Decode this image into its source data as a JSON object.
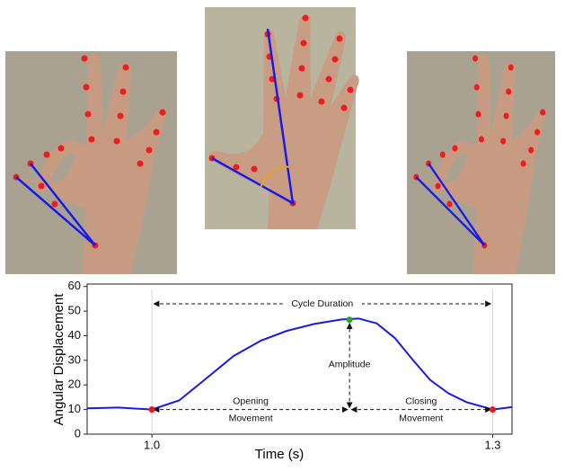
{
  "chart_data": {
    "type": "line",
    "x_label": "Time (s)",
    "y_label": "Angular Displacement",
    "x": [
      0.943,
      0.97,
      1.0,
      1.024,
      1.048,
      1.072,
      1.096,
      1.119,
      1.143,
      1.167,
      1.182,
      1.198,
      1.214,
      1.23,
      1.245,
      1.261,
      1.277,
      1.3,
      1.317
    ],
    "values": [
      10.5,
      10.8,
      10,
      13.7,
      22.7,
      31.8,
      38,
      42,
      44.8,
      46.6,
      47,
      45,
      39,
      30,
      22,
      16.6,
      13,
      10,
      11
    ],
    "color": "#1a1ae6",
    "markers": [
      {
        "x": 1.0,
        "y": 10,
        "color": "#e8161b"
      },
      {
        "x": 1.3,
        "y": 10,
        "color": "#e8161b"
      },
      {
        "x": 1.174,
        "y": 46.5,
        "color": "#2ca02c"
      }
    ],
    "xlim": [
      0.943,
      1.317
    ],
    "ylim": [
      0,
      61
    ],
    "xticks": [
      {
        "value": 1.0,
        "label": "1.0"
      },
      {
        "value": 1.3,
        "label": "1.3"
      }
    ],
    "yticks": [
      0,
      10,
      20,
      30,
      40,
      50,
      60
    ],
    "annotations": {
      "cycle": "Cycle Duration",
      "amplitude": "Amplitude",
      "opening": [
        "Opening",
        "Movement"
      ],
      "closing": [
        "Closing",
        "Movement"
      ]
    }
  }
}
